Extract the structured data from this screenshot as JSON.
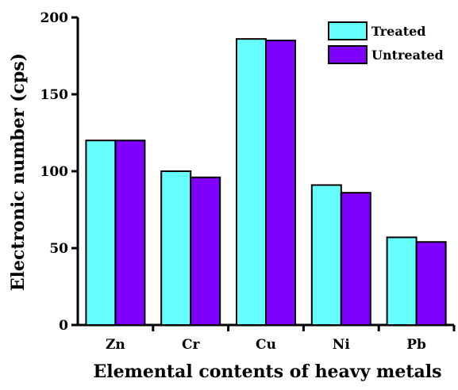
{
  "chart_data": {
    "type": "bar",
    "categories": [
      "Zn",
      "Cr",
      "Cu",
      "Ni",
      "Pb"
    ],
    "series": [
      {
        "name": "Treated",
        "values": [
          120,
          100,
          186,
          91,
          57
        ],
        "color": "#66ffff"
      },
      {
        "name": "Untreated",
        "values": [
          120,
          96,
          185,
          86,
          54
        ],
        "color": "#7f00ff"
      }
    ],
    "title": "",
    "xlabel": "Elemental contents of heavy metals",
    "ylabel": "Electronic number (cps)",
    "ylim": [
      0,
      200
    ],
    "yticks": [
      0,
      50,
      100,
      150,
      200
    ],
    "grid": false,
    "legend_position": "top-right"
  }
}
